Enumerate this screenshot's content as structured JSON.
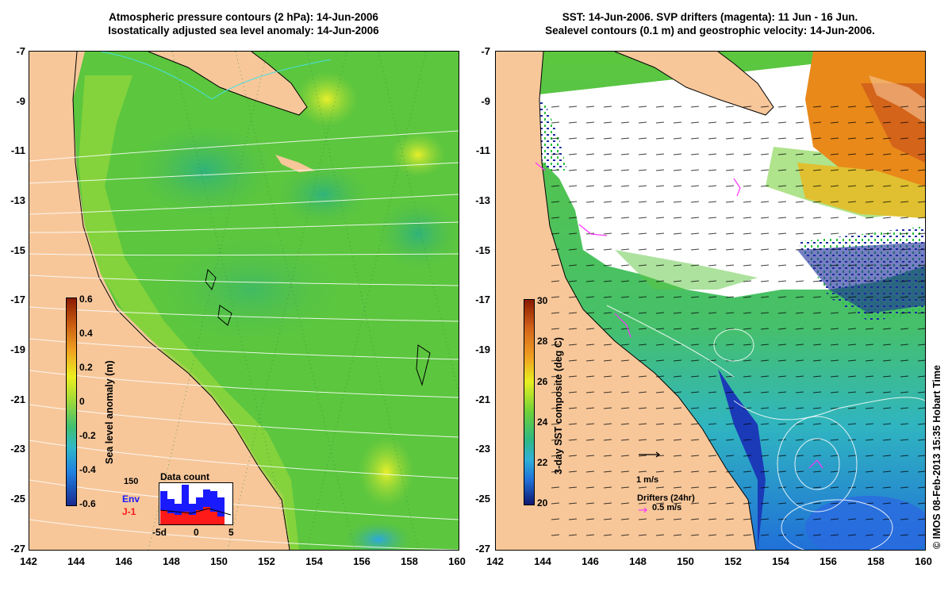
{
  "left_panel": {
    "title_line1": "Atmospheric pressure contours (2 hPa): 14-Jun-2006",
    "title_line2": "Isostatically adjusted sea level anomaly: 14-Jun-2006",
    "colorbar": {
      "title": "Sea level anomaly (m)",
      "labels": [
        "0.6",
        "0.4",
        "0.2",
        "0",
        "-0.2",
        "-0.4",
        "-0.6"
      ]
    },
    "inset": {
      "title": "Data count",
      "y_label": "150",
      "series_env": "Env",
      "series_j1": "J-1",
      "x_labels": [
        "-5d",
        "0",
        "5"
      ],
      "env_color": "#1a1aff",
      "j1_color": "#ff1a1a"
    }
  },
  "right_panel": {
    "title_line1": "SST: 14-Jun-2006. SVP drifters (magenta): 11 Jun - 16 Jun.",
    "title_line2": "Sealevel contours (0.1 m) and geostrophic velocity: 14-Jun-2006.",
    "colorbar": {
      "title": "3-day SST composite (deg C)",
      "labels": [
        "30",
        "28",
        "26",
        "24",
        "22",
        "20"
      ]
    },
    "velocity_scale": "1 m/s",
    "drifters_title": "Drifters (24hr)",
    "drifters_scale": "0.5 m/s",
    "drifter_color": "#ff33ff"
  },
  "axes": {
    "y_ticks": [
      "-7",
      "-9",
      "-11",
      "-13",
      "-15",
      "-17",
      "-19",
      "-21",
      "-23",
      "-25",
      "-27"
    ],
    "x_ticks": [
      "142",
      "144",
      "146",
      "148",
      "150",
      "152",
      "154",
      "156",
      "158",
      "160"
    ]
  },
  "credit": "© IMOS 08-Feb-2013 15:35 Hobart Time",
  "colors": {
    "land": "#f7c79a",
    "sea_green": "#5bc83c",
    "cloud": "#ffffff"
  }
}
